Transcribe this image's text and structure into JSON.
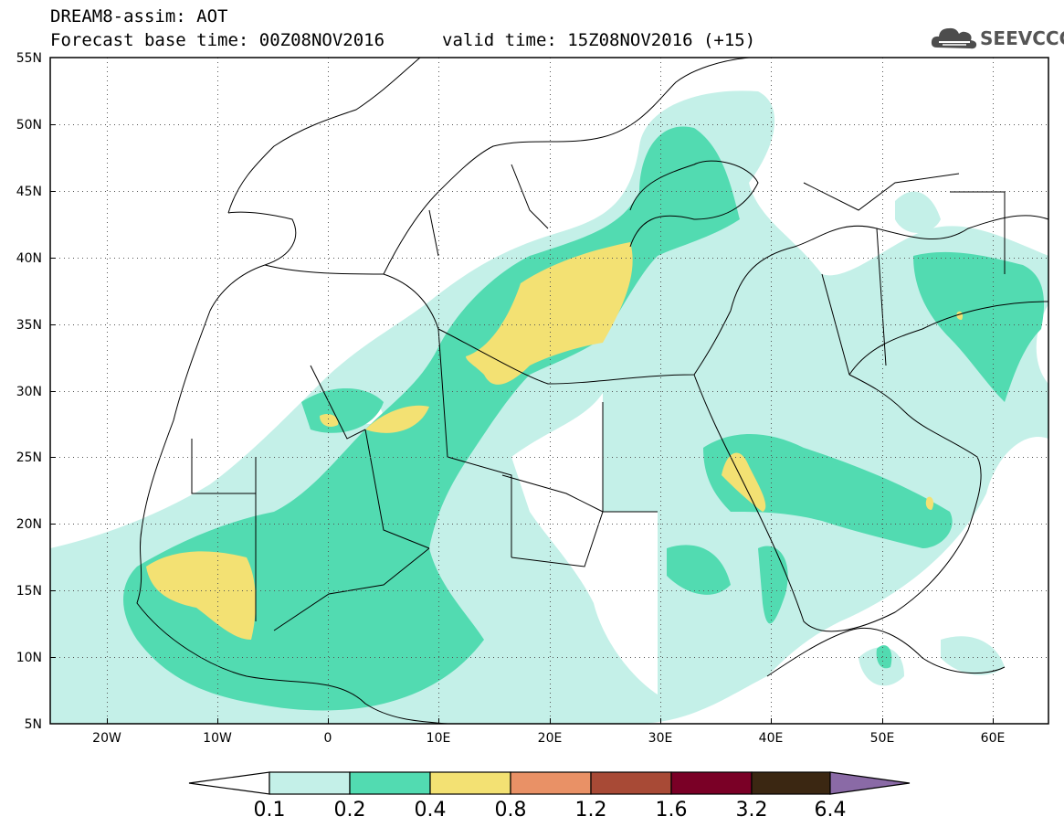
{
  "header": {
    "title": "DREAM8-assim: AOT",
    "base_time": "Forecast base time: 00Z08NOV2016",
    "valid_time": "valid time: 15Z08NOV2016 (+15)"
  },
  "logo": {
    "text": "SEEVCCC",
    "icon": "cloud-icon"
  },
  "map": {
    "lon_range": [
      -25,
      65
    ],
    "lat_range": [
      5,
      55
    ],
    "lon_ticks": [
      {
        "value": -20,
        "label": "20W"
      },
      {
        "value": -10,
        "label": "10W"
      },
      {
        "value": 0,
        "label": "0"
      },
      {
        "value": 10,
        "label": "10E"
      },
      {
        "value": 20,
        "label": "20E"
      },
      {
        "value": 30,
        "label": "30E"
      },
      {
        "value": 40,
        "label": "40E"
      },
      {
        "value": 50,
        "label": "50E"
      },
      {
        "value": 60,
        "label": "60E"
      }
    ],
    "lat_ticks": [
      {
        "value": 55,
        "label": "55N"
      },
      {
        "value": 50,
        "label": "50N"
      },
      {
        "value": 45,
        "label": "45N"
      },
      {
        "value": 40,
        "label": "40N"
      },
      {
        "value": 35,
        "label": "35N"
      },
      {
        "value": 30,
        "label": "30N"
      },
      {
        "value": 25,
        "label": "25N"
      },
      {
        "value": 20,
        "label": "20N"
      },
      {
        "value": 15,
        "label": "15N"
      },
      {
        "value": 10,
        "label": "10N"
      },
      {
        "value": 5,
        "label": "5N"
      }
    ],
    "grid": "dotted"
  },
  "colorbar": {
    "labels": [
      "0.1",
      "0.2",
      "0.4",
      "0.8",
      "1.2",
      "1.6",
      "3.2",
      "6.4"
    ],
    "colors": [
      "#ffffff",
      "#c4f0e8",
      "#52dbb1",
      "#f3e173",
      "#e99166",
      "#a84a36",
      "#7a0026",
      "#3b2712",
      "#8a6aa6"
    ]
  },
  "colors": {
    "level_0_1": "#c4f0e8",
    "level_0_2": "#52dbb1",
    "level_0_4": "#f3e173"
  }
}
